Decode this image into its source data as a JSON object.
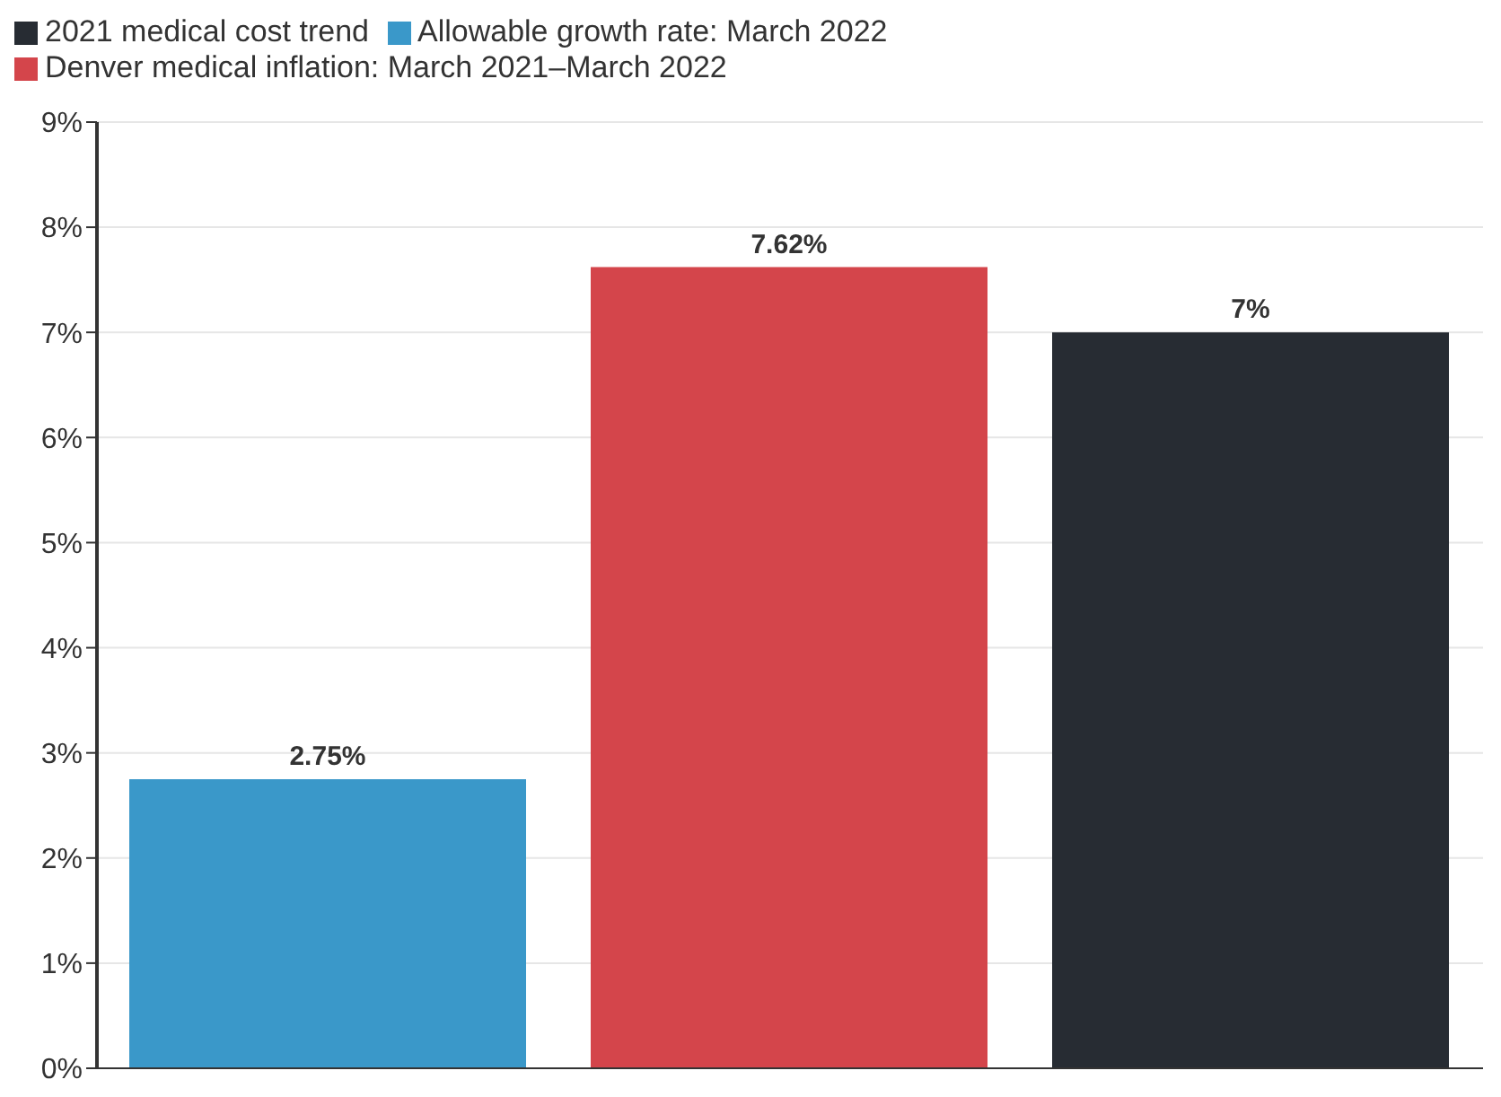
{
  "chart_data": {
    "type": "bar",
    "categories": [
      null
    ],
    "series": [
      {
        "name": "Allowable growth rate: March 2022",
        "color": "#3a98c9",
        "values": [
          2.75
        ],
        "value_labels": [
          "2.75%"
        ]
      },
      {
        "name": "Denver medical inflation: March 2021–March 2022",
        "color": "#d4454b",
        "values": [
          7.62
        ],
        "value_labels": [
          "7.62%"
        ]
      },
      {
        "name": "2021 medical cost trend",
        "color": "#272c33",
        "values": [
          7
        ],
        "value_labels": [
          "7%"
        ]
      }
    ],
    "ylim": [
      0,
      9
    ],
    "yticks": [
      {
        "value": 0,
        "label": "0%"
      },
      {
        "value": 1,
        "label": "1%"
      },
      {
        "value": 2,
        "label": "2%"
      },
      {
        "value": 3,
        "label": "3%"
      },
      {
        "value": 4,
        "label": "4%"
      },
      {
        "value": 5,
        "label": "5%"
      },
      {
        "value": 6,
        "label": "6%"
      },
      {
        "value": 7,
        "label": "7%"
      },
      {
        "value": 8,
        "label": "8%"
      },
      {
        "value": 9,
        "label": "9%"
      }
    ],
    "grid": "y",
    "legend": "top left",
    "tick_labels": "y"
  }
}
